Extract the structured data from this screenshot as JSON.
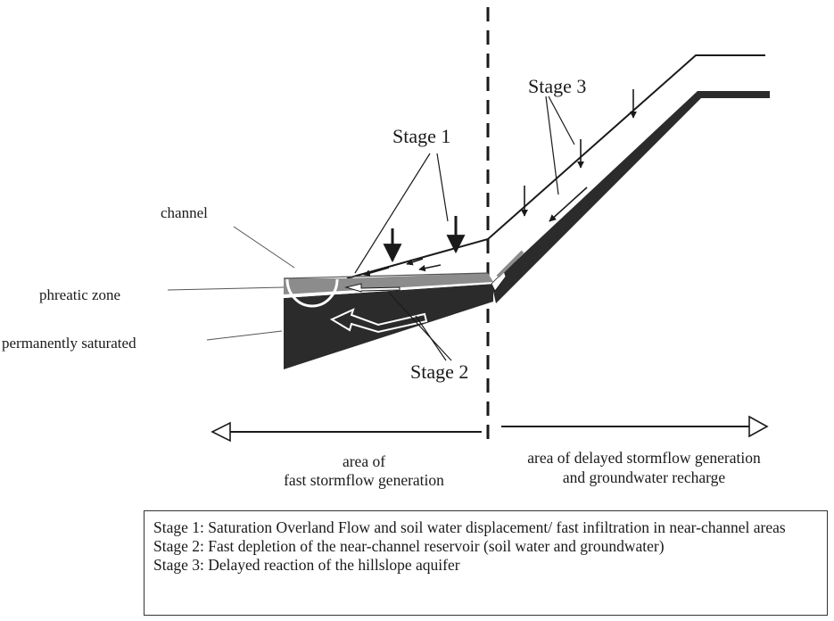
{
  "labels": {
    "stage1": "Stage 1",
    "stage2": "Stage 2",
    "stage3": "Stage 3",
    "channel": "channel",
    "phreatic_zone": "phreatic zone",
    "permanently_saturated": "permanently saturated"
  },
  "areas": {
    "fast": {
      "line1": "area of",
      "line2": "fast stormflow generation"
    },
    "delayed": {
      "line1": "area of delayed stormflow generation",
      "line2": "and groundwater recharge"
    }
  },
  "legend": [
    {
      "stage": "Stage 1:",
      "text": "Saturation Overland Flow and soil water displacement/ fast infiltration in near-channel areas"
    },
    {
      "stage": "Stage 2:",
      "text": "Fast depletion of the near-channel reservoir (soil water and groundwater)"
    },
    {
      "stage": "Stage 3:",
      "text": "Delayed reaction of the hillslope aquifer"
    }
  ],
  "colors": {
    "ink": "#1a1a1a",
    "dark_fill": "#2b2b2b",
    "phreatic_fill": "#8c8c8c"
  }
}
